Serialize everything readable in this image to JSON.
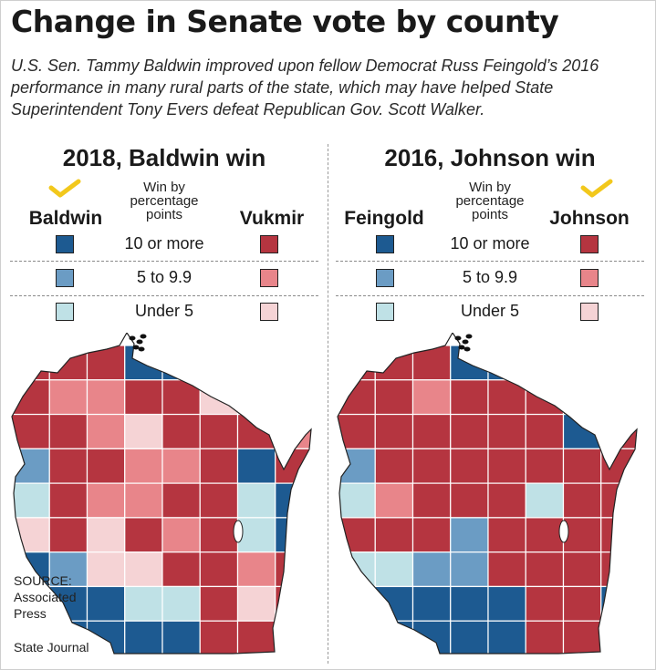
{
  "title": "Change in Senate vote by county",
  "subtitle": "U.S. Sen. Tammy Baldwin improved upon fellow Democrat Russ Feingold’s 2016 performance in many rural parts of the state, which may have helped State Superintendent Tony Evers defeat Republican Gov. Scott Walker.",
  "legend": {
    "heading_lines": [
      "Win by",
      "percentage",
      "points"
    ],
    "categories": [
      "10 or more",
      "5 to 9.9",
      "Under 5"
    ],
    "dem_colors": [
      "#1d5a91",
      "#6b9cc4",
      "#bfe1e6"
    ],
    "rep_colors": [
      "#b53540",
      "#e8858a",
      "#f5d3d5"
    ]
  },
  "panels": [
    {
      "title": "2018, Baldwin win",
      "dem_candidate": "Baldwin",
      "rep_candidate": "Vukmir",
      "winner": "dem",
      "check_icon": "checkmark-icon",
      "counties": [
        [
          3,
          3,
          3,
          0,
          0,
          5,
          5,
          5
        ],
        [
          3,
          4,
          4,
          3,
          3,
          5,
          5,
          3
        ],
        [
          3,
          3,
          4,
          5,
          3,
          3,
          3,
          4
        ],
        [
          1,
          3,
          3,
          4,
          4,
          3,
          0,
          3
        ],
        [
          2,
          3,
          4,
          4,
          3,
          3,
          2,
          0
        ],
        [
          5,
          3,
          5,
          3,
          4,
          3,
          2,
          0
        ],
        [
          0,
          1,
          5,
          5,
          3,
          3,
          4,
          3
        ],
        [
          0,
          0,
          0,
          2,
          2,
          3,
          5,
          3
        ],
        [
          1,
          0,
          0,
          0,
          0,
          3,
          3,
          0
        ]
      ]
    },
    {
      "title": "2016, Johnson win",
      "dem_candidate": "Feingold",
      "rep_candidate": "Johnson",
      "winner": "rep",
      "check_icon": "checkmark-icon",
      "counties": [
        [
          3,
          3,
          3,
          0,
          0,
          3,
          3,
          3
        ],
        [
          3,
          3,
          4,
          3,
          3,
          3,
          3,
          3
        ],
        [
          3,
          3,
          3,
          3,
          3,
          3,
          0,
          3
        ],
        [
          1,
          3,
          3,
          3,
          3,
          3,
          3,
          3
        ],
        [
          2,
          4,
          3,
          3,
          3,
          2,
          3,
          3
        ],
        [
          3,
          3,
          3,
          1,
          3,
          3,
          3,
          3
        ],
        [
          2,
          2,
          1,
          1,
          3,
          3,
          3,
          3
        ],
        [
          4,
          0,
          0,
          0,
          0,
          3,
          3,
          0
        ],
        [
          4,
          0,
          0,
          0,
          0,
          3,
          3,
          5
        ]
      ]
    }
  ],
  "source_lines": [
    "SOURCE:",
    "Associated",
    "Press"
  ],
  "credit": "State Journal"
}
